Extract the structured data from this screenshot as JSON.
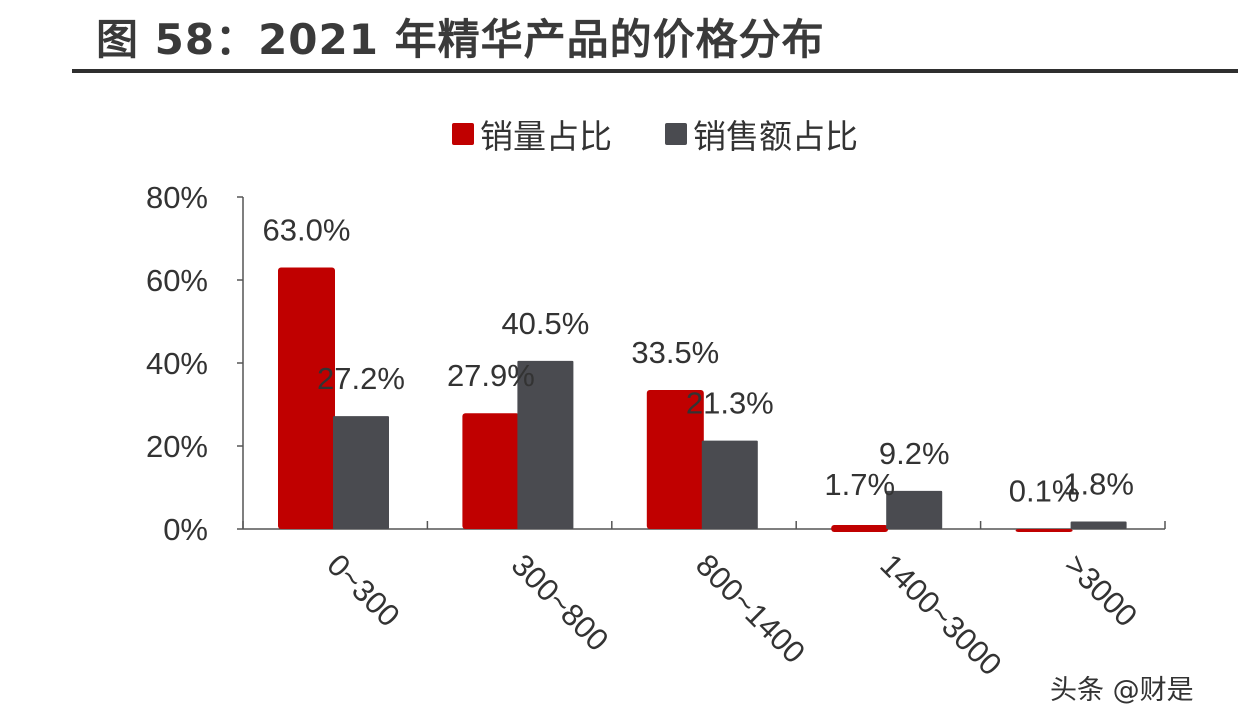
{
  "title": "图 58：2021 年精华产品的价格分布",
  "watermark": "头条 @财是",
  "chart_data": {
    "type": "bar",
    "title": "",
    "xlabel": "",
    "ylabel": "",
    "categories": [
      "0~300",
      "300~800",
      "800~1400",
      "1400~3000",
      ">3000"
    ],
    "series": [
      {
        "name": "销量占比",
        "color": "#c00000",
        "values": [
          63.0,
          27.9,
          33.5,
          1.7,
          0.1
        ],
        "labels": [
          "63.0%",
          "27.9%",
          "33.5%",
          "1.7%",
          "0.1%"
        ]
      },
      {
        "name": "销售额占比",
        "color": "#4a4b50",
        "values": [
          27.2,
          40.5,
          21.3,
          9.2,
          1.8
        ],
        "labels": [
          "27.2%",
          "40.5%",
          "21.3%",
          "9.2%",
          "1.8%"
        ]
      }
    ],
    "ylim": [
      0,
      80
    ],
    "yticks": [
      "0%",
      "20%",
      "40%",
      "60%",
      "80%"
    ],
    "ytick_values": [
      0,
      20,
      40,
      60,
      80
    ],
    "legend": "top",
    "grid": false
  }
}
